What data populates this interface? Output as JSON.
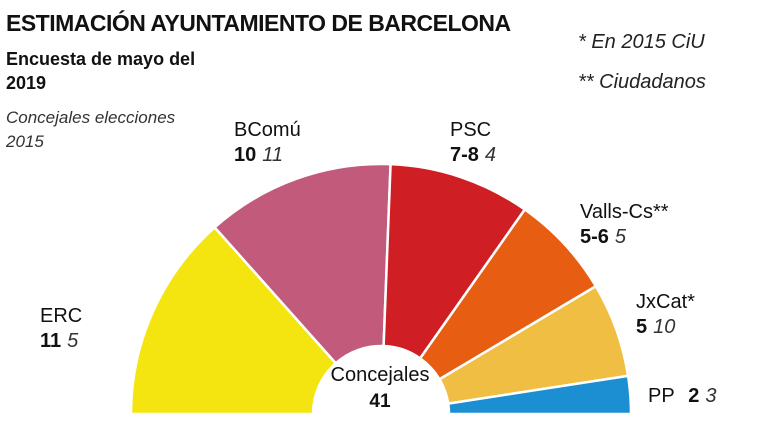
{
  "chart_data": {
    "type": "pie",
    "subtype": "semicircle-hemicycle",
    "title": "ESTIMACIÓN AYUNTAMIENTO DE BARCELONA",
    "subtitle": "Encuesta de mayo del 2019",
    "legend_note": "Concejales elecciones 2015",
    "notes": [
      "* En 2015 CiU",
      "** Ciudadanos"
    ],
    "center_label": "Concejales",
    "total": "41",
    "series": [
      {
        "name": "ERC",
        "estimate": "11",
        "seats": 11,
        "previous": "5",
        "color": "#f4e511"
      },
      {
        "name": "BComú",
        "estimate": "10",
        "seats": 10,
        "previous": "11",
        "color": "#c25a7c"
      },
      {
        "name": "PSC",
        "estimate": "7-8",
        "seats": 7.5,
        "previous": "4",
        "color": "#d01f24"
      },
      {
        "name": "Valls-Cs**",
        "estimate": "5-6",
        "seats": 5.5,
        "previous": "5",
        "color": "#e75d12"
      },
      {
        "name": "JxCat*",
        "estimate": "5",
        "seats": 5,
        "previous": "10",
        "color": "#efbe42"
      },
      {
        "name": "PP",
        "estimate": "2",
        "seats": 2,
        "previous": "3",
        "color": "#1b8fd2"
      }
    ]
  }
}
